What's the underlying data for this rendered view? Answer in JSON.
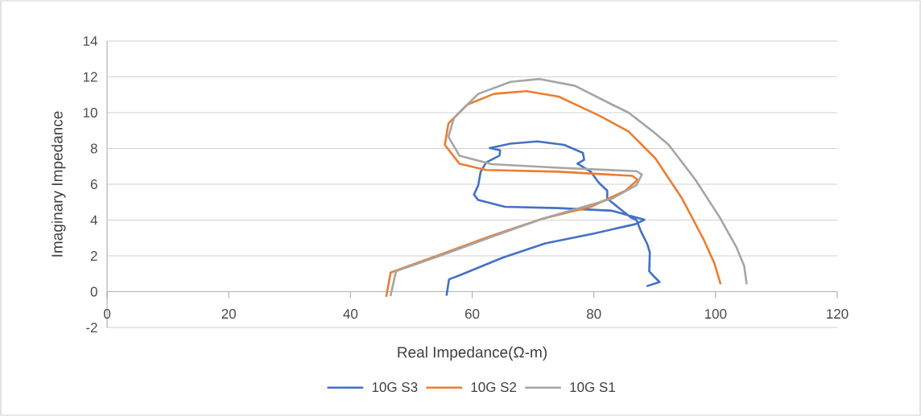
{
  "chart_data": {
    "type": "line",
    "xlabel": "Real Impedance(Ω-m)",
    "ylabel": "Imaginary Impedance",
    "xlim": [
      0,
      120
    ],
    "ylim": [
      -2,
      14
    ],
    "xticks": [
      0,
      20,
      40,
      60,
      80,
      100,
      120
    ],
    "yticks": [
      -2,
      0,
      2,
      4,
      6,
      8,
      10,
      12,
      14
    ],
    "grid": "y",
    "legend": "bottom",
    "series": [
      {
        "name": "10G S3",
        "color": "#4472c4",
        "x": [
          55.8,
          56.2,
          57.9,
          65.0,
          72.0,
          80.0,
          86.8,
          88.3,
          86.1,
          83.0,
          74.2,
          65.4,
          61.0,
          60.3,
          61.0,
          61.4,
          62.3,
          64.5,
          64.6,
          62.9,
          66.3,
          70.7,
          75.1,
          78.2,
          78.4,
          77.3,
          79.5,
          80.8,
          82.2,
          82.2,
          84.4,
          86.1,
          87.0,
          87.7,
          88.8,
          89.2,
          89.1,
          89.9,
          90.8,
          88.8
        ],
        "values": [
          -0.18,
          0.69,
          0.91,
          1.9,
          2.7,
          3.25,
          3.77,
          4.02,
          4.22,
          4.52,
          4.67,
          4.74,
          5.12,
          5.42,
          5.95,
          6.7,
          7.22,
          7.6,
          7.9,
          8.02,
          8.27,
          8.39,
          8.2,
          7.75,
          7.37,
          7.15,
          6.7,
          6.09,
          5.64,
          5.2,
          4.6,
          4.14,
          4.0,
          3.4,
          2.64,
          2.19,
          1.14,
          0.84,
          0.54,
          0.32
        ]
      },
      {
        "name": "10G S2",
        "color": "#ed7d31",
        "x": [
          45.9,
          46.6,
          55.0,
          63.0,
          71.5,
          79.5,
          85.2,
          87.2,
          86.3,
          74.2,
          62.3,
          57.9,
          55.5,
          56.1,
          59.2,
          63.6,
          68.9,
          74.2,
          80.8,
          85.7,
          90.1,
          94.5,
          98.0,
          99.8,
          100.8
        ],
        "values": [
          -0.24,
          1.07,
          2.1,
          3.1,
          4.07,
          4.74,
          5.64,
          6.25,
          6.47,
          6.7,
          6.8,
          7.15,
          8.2,
          9.4,
          10.45,
          11.05,
          11.2,
          10.9,
          9.85,
          8.95,
          7.45,
          5.2,
          2.94,
          1.59,
          0.46
        ]
      },
      {
        "name": "10G S1",
        "color": "#a5a5a5",
        "x": [
          46.6,
          47.5,
          55.5,
          63.5,
          71.5,
          83.0,
          87.0,
          87.9,
          87.0,
          74.2,
          63.2,
          57.9,
          56.1,
          57.0,
          61.0,
          66.3,
          71.1,
          76.9,
          83.0,
          85.7,
          89.7,
          92.3,
          96.7,
          100.7,
          103.4,
          104.7,
          105.1
        ],
        "values": [
          -0.2,
          1.15,
          2.1,
          3.1,
          4.07,
          5.2,
          5.95,
          6.55,
          6.73,
          6.92,
          7.12,
          7.6,
          8.65,
          9.7,
          11.05,
          11.72,
          11.88,
          11.5,
          10.45,
          10.0,
          8.95,
          8.2,
          6.25,
          4.14,
          2.5,
          1.44,
          0.46
        ]
      }
    ]
  }
}
